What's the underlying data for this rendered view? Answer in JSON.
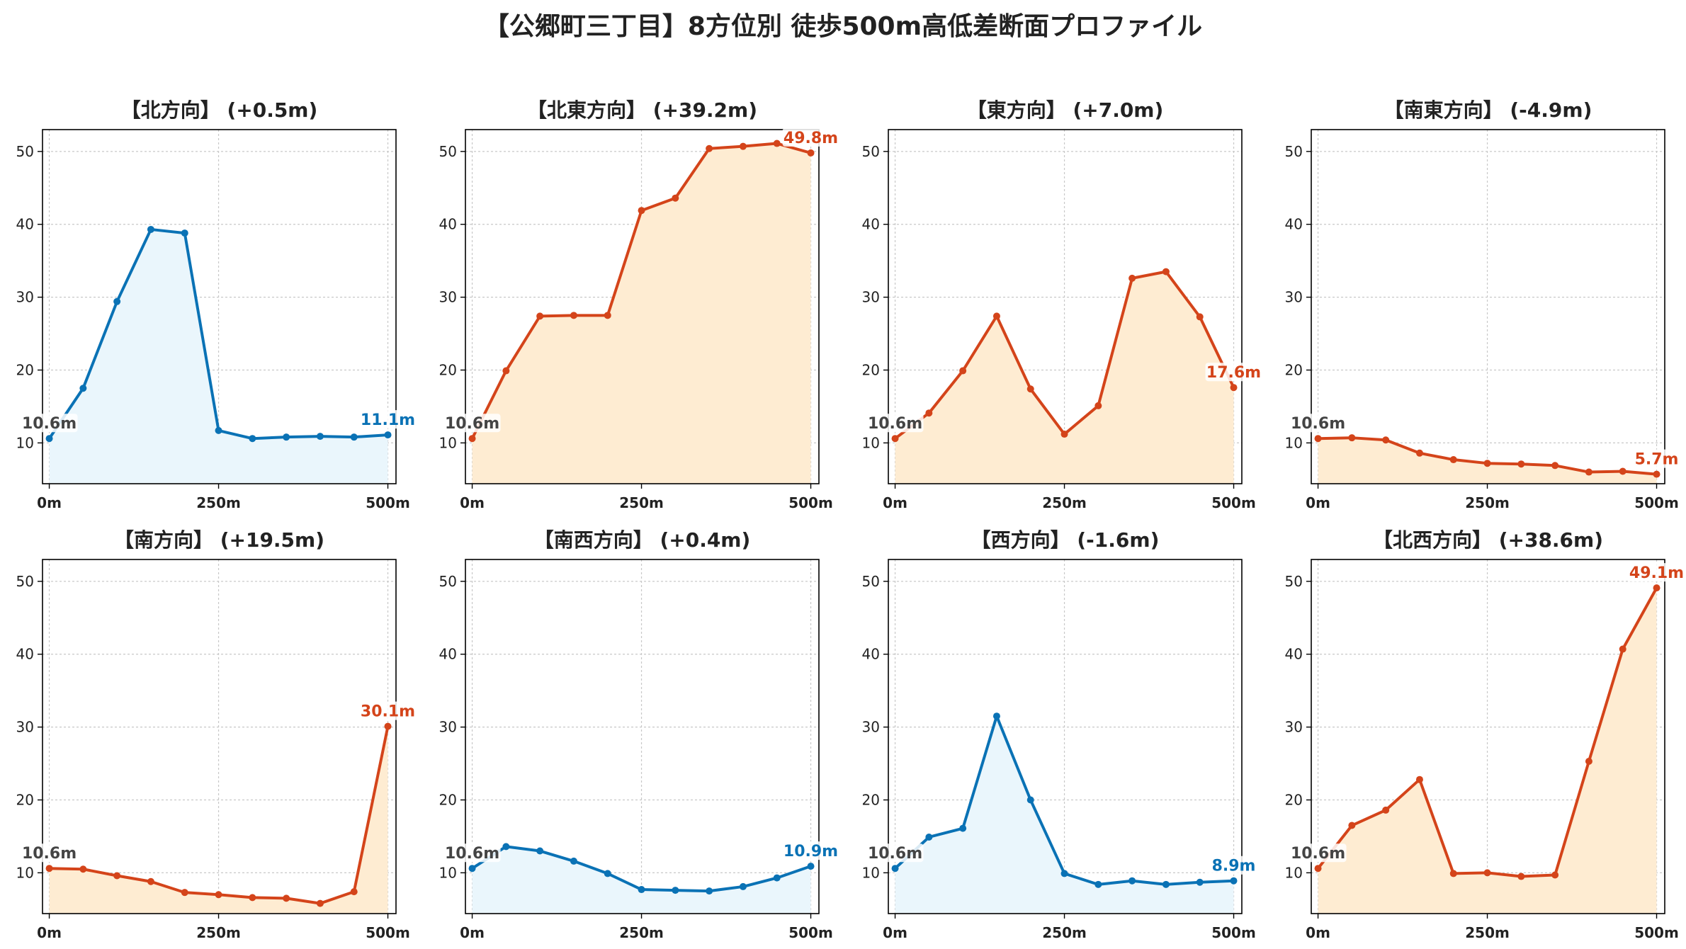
{
  "title": "【公郷町三丁目】8方位別 徒歩500m高低差断面プロファイル",
  "colors": {
    "rise_line": "#d4441a",
    "rise_fill": "#feecd2",
    "fall_line": "#0a72b5",
    "fall_fill": "#eaf6fc",
    "start_label": "#444444",
    "grid": "#c8c8c8"
  },
  "chart_data": [
    {
      "type": "area",
      "title": "【北方向】 (+0.5m)",
      "trend": "fall",
      "x": [
        0,
        50,
        100,
        150,
        200,
        250,
        300,
        350,
        400,
        450,
        500
      ],
      "values": [
        10.6,
        17.5,
        29.4,
        39.3,
        38.8,
        11.7,
        10.6,
        10.8,
        10.9,
        10.8,
        11.1
      ],
      "start_label": "10.6m",
      "end_label": "11.1m",
      "xticks": [
        "0m",
        "250m",
        "500m"
      ],
      "yticks": [
        10,
        20,
        30,
        40,
        50
      ],
      "ylim": [
        4.4,
        53
      ],
      "xlim": [
        -10,
        512
      ],
      "grid": true
    },
    {
      "type": "area",
      "title": "【北東方向】 (+39.2m)",
      "trend": "rise",
      "x": [
        0,
        50,
        100,
        150,
        200,
        250,
        300,
        350,
        400,
        450,
        500
      ],
      "values": [
        10.6,
        19.9,
        27.4,
        27.5,
        27.5,
        41.9,
        43.6,
        50.4,
        50.7,
        51.1,
        49.8
      ],
      "start_label": "10.6m",
      "end_label": "49.8m",
      "xticks": [
        "0m",
        "250m",
        "500m"
      ],
      "yticks": [
        10,
        20,
        30,
        40,
        50
      ],
      "ylim": [
        4.4,
        53
      ],
      "xlim": [
        -10,
        512
      ],
      "grid": true
    },
    {
      "type": "area",
      "title": "【東方向】 (+7.0m)",
      "trend": "rise",
      "x": [
        0,
        50,
        100,
        150,
        200,
        250,
        300,
        350,
        400,
        450,
        500
      ],
      "values": [
        10.6,
        14.1,
        19.9,
        27.4,
        17.4,
        11.2,
        15.1,
        32.6,
        33.5,
        27.3,
        17.6
      ],
      "start_label": "10.6m",
      "end_label": "17.6m",
      "xticks": [
        "0m",
        "250m",
        "500m"
      ],
      "yticks": [
        10,
        20,
        30,
        40,
        50
      ],
      "ylim": [
        4.4,
        53
      ],
      "xlim": [
        -10,
        512
      ],
      "grid": true
    },
    {
      "type": "area",
      "title": "【南東方向】 (-4.9m)",
      "trend": "rise",
      "x": [
        0,
        50,
        100,
        150,
        200,
        250,
        300,
        350,
        400,
        450,
        500
      ],
      "values": [
        10.6,
        10.7,
        10.4,
        8.6,
        7.7,
        7.2,
        7.1,
        6.9,
        6.0,
        6.1,
        5.7
      ],
      "start_label": "10.6m",
      "end_label": "5.7m",
      "xticks": [
        "0m",
        "250m",
        "500m"
      ],
      "yticks": [
        10,
        20,
        30,
        40,
        50
      ],
      "ylim": [
        4.4,
        53
      ],
      "xlim": [
        -10,
        512
      ],
      "grid": true
    },
    {
      "type": "area",
      "title": "【南方向】 (+19.5m)",
      "trend": "rise",
      "x": [
        0,
        50,
        100,
        150,
        200,
        250,
        300,
        350,
        400,
        450,
        500
      ],
      "values": [
        10.6,
        10.5,
        9.6,
        8.8,
        7.3,
        7.0,
        6.6,
        6.5,
        5.8,
        7.4,
        30.1
      ],
      "start_label": "10.6m",
      "end_label": "30.1m",
      "xticks": [
        "0m",
        "250m",
        "500m"
      ],
      "yticks": [
        10,
        20,
        30,
        40,
        50
      ],
      "ylim": [
        4.4,
        53
      ],
      "xlim": [
        -10,
        512
      ],
      "grid": true
    },
    {
      "type": "area",
      "title": "【南西方向】 (+0.4m)",
      "trend": "fall",
      "x": [
        0,
        50,
        100,
        150,
        200,
        250,
        300,
        350,
        400,
        450,
        500
      ],
      "values": [
        10.6,
        13.6,
        13.0,
        11.6,
        9.9,
        7.7,
        7.6,
        7.5,
        8.1,
        9.3,
        10.9
      ],
      "start_label": "10.6m",
      "end_label": "10.9m",
      "xticks": [
        "0m",
        "250m",
        "500m"
      ],
      "yticks": [
        10,
        20,
        30,
        40,
        50
      ],
      "ylim": [
        4.4,
        53
      ],
      "xlim": [
        -10,
        512
      ],
      "grid": true
    },
    {
      "type": "area",
      "title": "【西方向】 (-1.6m)",
      "trend": "fall",
      "x": [
        0,
        50,
        100,
        150,
        200,
        250,
        300,
        350,
        400,
        450,
        500
      ],
      "values": [
        10.6,
        14.9,
        16.1,
        31.5,
        20.0,
        9.9,
        8.4,
        8.9,
        8.4,
        8.7,
        8.9
      ],
      "start_label": "10.6m",
      "end_label": "8.9m",
      "xticks": [
        "0m",
        "250m",
        "500m"
      ],
      "yticks": [
        10,
        20,
        30,
        40,
        50
      ],
      "ylim": [
        4.4,
        53
      ],
      "xlim": [
        -10,
        512
      ],
      "grid": true
    },
    {
      "type": "area",
      "title": "【北西方向】 (+38.6m)",
      "trend": "rise",
      "x": [
        0,
        50,
        100,
        150,
        200,
        250,
        300,
        350,
        400,
        450,
        500
      ],
      "values": [
        10.6,
        16.5,
        18.6,
        22.8,
        9.9,
        10.0,
        9.5,
        9.7,
        25.3,
        40.7,
        49.1
      ],
      "start_label": "10.6m",
      "end_label": "49.1m",
      "xticks": [
        "0m",
        "250m",
        "500m"
      ],
      "yticks": [
        10,
        20,
        30,
        40,
        50
      ],
      "ylim": [
        4.4,
        53
      ],
      "xlim": [
        -10,
        512
      ],
      "grid": true
    }
  ]
}
